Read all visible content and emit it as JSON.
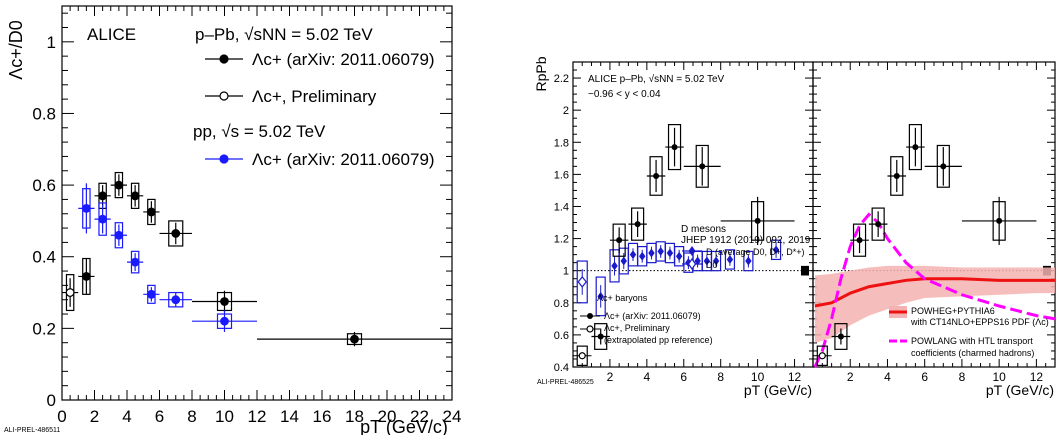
{
  "chart_data": [
    {
      "type": "scatter",
      "ylabel": "Λc+/D0",
      "xlabel": "pT (GeV/c)",
      "xlim": [
        0,
        24
      ],
      "ylim": [
        0,
        1.1
      ],
      "xticks": [
        "0",
        "2",
        "4",
        "6",
        "8",
        "10",
        "12",
        "14",
        "16",
        "18",
        "20",
        "22",
        "24"
      ],
      "yticks": [
        "0",
        "0.2",
        "0.4",
        "0.6",
        "0.8",
        "1"
      ],
      "experiment": "ALICE",
      "system1": "p–Pb, √sNN = 5.02 TeV",
      "system2": "pp, √s = 5.02 TeV",
      "watermark": "ALI-PREL-486511",
      "legend_position": "top-right",
      "series": [
        {
          "name": "Λc+ (arXiv: 2011.06079)",
          "color": "#000000",
          "marker": "filled",
          "points": [
            {
              "x": 1.5,
              "y": 0.345,
              "xl": 1,
              "xh": 2,
              "stat": 0.05,
              "sys": 0.05
            },
            {
              "x": 2.5,
              "y": 0.57,
              "xl": 2,
              "xh": 3,
              "stat": 0.03,
              "sys": 0.035
            },
            {
              "x": 3.5,
              "y": 0.6,
              "xl": 3,
              "xh": 4,
              "stat": 0.03,
              "sys": 0.035
            },
            {
              "x": 4.5,
              "y": 0.57,
              "xl": 4,
              "xh": 5,
              "stat": 0.03,
              "sys": 0.035
            },
            {
              "x": 5.5,
              "y": 0.525,
              "xl": 5,
              "xh": 6,
              "stat": 0.03,
              "sys": 0.035
            },
            {
              "x": 7.0,
              "y": 0.465,
              "xl": 6,
              "xh": 8,
              "stat": 0.03,
              "sys": 0.035
            },
            {
              "x": 10.0,
              "y": 0.275,
              "xl": 8,
              "xh": 12,
              "stat": 0.03,
              "sys": 0.025
            },
            {
              "x": 18.0,
              "y": 0.17,
              "xl": 12,
              "xh": 24,
              "stat": 0.02,
              "sys": 0.015
            }
          ]
        },
        {
          "name": "Λc+, Preliminary",
          "color": "#000000",
          "marker": "open",
          "points": [
            {
              "x": 0.5,
              "y": 0.3,
              "xl": 0,
              "xh": 1,
              "stat": 0.04,
              "sys": 0.05
            }
          ]
        },
        {
          "name": "Λc+ (arXiv: 2011.06079)",
          "color": "#1a1aff",
          "marker": "filled",
          "points": [
            {
              "x": 1.5,
              "y": 0.535,
              "xl": 1,
              "xh": 2,
              "stat": 0.07,
              "sys": 0.055
            },
            {
              "x": 2.5,
              "y": 0.505,
              "xl": 2,
              "xh": 3,
              "stat": 0.04,
              "sys": 0.045
            },
            {
              "x": 3.5,
              "y": 0.46,
              "xl": 3,
              "xh": 4,
              "stat": 0.03,
              "sys": 0.035
            },
            {
              "x": 4.5,
              "y": 0.385,
              "xl": 4,
              "xh": 5,
              "stat": 0.025,
              "sys": 0.03
            },
            {
              "x": 5.5,
              "y": 0.295,
              "xl": 5,
              "xh": 6,
              "stat": 0.02,
              "sys": 0.025
            },
            {
              "x": 7.0,
              "y": 0.28,
              "xl": 6,
              "xh": 8,
              "stat": 0.02,
              "sys": 0.02
            },
            {
              "x": 10.0,
              "y": 0.22,
              "xl": 8,
              "xh": 12,
              "stat": 0.03,
              "sys": 0.02
            }
          ]
        }
      ]
    },
    {
      "type": "scatter",
      "ylabel": "RpPb",
      "xlabel": "pT (GeV/c)",
      "xlim": [
        0,
        13
      ],
      "ylim": [
        0.4,
        2.3
      ],
      "xticks": [
        "2",
        "4",
        "6",
        "8",
        "10",
        "12"
      ],
      "yticks": [
        "0.4",
        "0.6",
        "0.8",
        "1",
        "1.2",
        "1.4",
        "1.6",
        "1.8",
        "2",
        "2.2"
      ],
      "header1": "ALICE p–Pb, √sNN = 5.02 TeV",
      "header2": "−0.96 < y < 0.04",
      "watermark": "ALI-PREL-486525",
      "left_panel": {
        "dmesons_title": "D mesons",
        "dmesons_ref": "JHEP 1912 (2019) 092, 2019",
        "dmesons_avg": "D (average D0, D+, D*+)",
        "d0": "D0",
        "lc_title": "Λc+ baryons",
        "lc_arxiv": "Λc+ (arXiv: 2011.06079)",
        "lc_prelim": "Λc+, Preliminary",
        "lc_prelim_note": "(extrapolated pp reference)",
        "lc_filled": [
          {
            "x": 1.5,
            "y": 0.59,
            "xl": 1,
            "xh": 2,
            "stat": 0.05,
            "sys": 0.08
          },
          {
            "x": 2.5,
            "y": 1.19,
            "xl": 2,
            "xh": 3,
            "stat": 0.08,
            "sys": 0.1
          },
          {
            "x": 3.5,
            "y": 1.29,
            "xl": 3,
            "xh": 4,
            "stat": 0.08,
            "sys": 0.1
          },
          {
            "x": 4.5,
            "y": 1.59,
            "xl": 4,
            "xh": 5,
            "stat": 0.1,
            "sys": 0.12
          },
          {
            "x": 5.5,
            "y": 1.77,
            "xl": 5,
            "xh": 6,
            "stat": 0.12,
            "sys": 0.14
          },
          {
            "x": 7.0,
            "y": 1.65,
            "xl": 6,
            "xh": 8,
            "stat": 0.12,
            "sys": 0.13
          },
          {
            "x": 10.0,
            "y": 1.31,
            "xl": 8,
            "xh": 12,
            "stat": 0.15,
            "sys": 0.12
          }
        ],
        "lc_open": [
          {
            "x": 0.5,
            "y": 0.47,
            "xl": 0,
            "xh": 1,
            "stat": 0.03,
            "sys": 0.06
          }
        ],
        "d_avg": [
          {
            "x": 1.5,
            "y": 0.84,
            "stat": 0.07,
            "sys": 0.12
          },
          {
            "x": 2.25,
            "y": 1.03,
            "stat": 0.06,
            "sys": 0.1
          },
          {
            "x": 2.75,
            "y": 1.06,
            "stat": 0.05,
            "sys": 0.08
          },
          {
            "x": 3.25,
            "y": 1.1,
            "stat": 0.04,
            "sys": 0.07
          },
          {
            "x": 3.75,
            "y": 1.09,
            "stat": 0.04,
            "sys": 0.06
          },
          {
            "x": 4.25,
            "y": 1.11,
            "stat": 0.04,
            "sys": 0.06
          },
          {
            "x": 4.75,
            "y": 1.12,
            "stat": 0.04,
            "sys": 0.06
          },
          {
            "x": 5.25,
            "y": 1.11,
            "stat": 0.04,
            "sys": 0.06
          },
          {
            "x": 5.75,
            "y": 1.09,
            "stat": 0.04,
            "sys": 0.06
          },
          {
            "x": 6.25,
            "y": 1.05,
            "stat": 0.04,
            "sys": 0.06
          },
          {
            "x": 6.75,
            "y": 1.06,
            "stat": 0.04,
            "sys": 0.06
          },
          {
            "x": 7.25,
            "y": 1.06,
            "stat": 0.04,
            "sys": 0.06
          },
          {
            "x": 7.75,
            "y": 1.06,
            "stat": 0.04,
            "sys": 0.06
          },
          {
            "x": 8.5,
            "y": 1.07,
            "stat": 0.04,
            "sys": 0.06
          },
          {
            "x": 9.5,
            "y": 1.06,
            "stat": 0.04,
            "sys": 0.06
          },
          {
            "x": 11.0,
            "y": 1.13,
            "stat": 0.05,
            "sys": 0.06
          }
        ],
        "d0_open": [
          {
            "x": 0.5,
            "y": 0.93,
            "stat": 0.08,
            "sys": 0.13
          }
        ]
      },
      "right_panel": {
        "powheg_label1": "POWHEG+PYTHIA6",
        "powheg_label2": "with CT14NLO+EPPS16 PDF (Λc)",
        "powlang_label1": "POWLANG with HTL transport",
        "powlang_label2": "coefficients (charmed hadrons)",
        "lc_filled": [
          {
            "x": 1.5,
            "y": 0.59,
            "xl": 1,
            "xh": 2,
            "stat": 0.05,
            "sys": 0.08
          },
          {
            "x": 2.5,
            "y": 1.19,
            "xl": 2,
            "xh": 3,
            "stat": 0.08,
            "sys": 0.1
          },
          {
            "x": 3.5,
            "y": 1.29,
            "xl": 3,
            "xh": 4,
            "stat": 0.08,
            "sys": 0.1
          },
          {
            "x": 4.5,
            "y": 1.59,
            "xl": 4,
            "xh": 5,
            "stat": 0.1,
            "sys": 0.12
          },
          {
            "x": 5.5,
            "y": 1.77,
            "xl": 5,
            "xh": 6,
            "stat": 0.12,
            "sys": 0.14
          },
          {
            "x": 7.0,
            "y": 1.65,
            "xl": 6,
            "xh": 8,
            "stat": 0.12,
            "sys": 0.13
          },
          {
            "x": 10.0,
            "y": 1.31,
            "xl": 8,
            "xh": 12,
            "stat": 0.15,
            "sys": 0.12
          }
        ],
        "lc_open": [
          {
            "x": 0.5,
            "y": 0.47,
            "xl": 0,
            "xh": 1,
            "stat": 0.03,
            "sys": 0.06
          }
        ],
        "powheg_curve": [
          [
            0.1,
            0.78
          ],
          [
            1,
            0.8
          ],
          [
            2,
            0.86
          ],
          [
            3,
            0.9
          ],
          [
            4,
            0.92
          ],
          [
            5,
            0.94
          ],
          [
            6,
            0.95
          ],
          [
            8,
            0.95
          ],
          [
            10,
            0.94
          ],
          [
            12,
            0.94
          ],
          [
            13,
            0.94
          ]
        ],
        "powheg_band": [
          [
            0.1,
            0.55,
            0.97
          ],
          [
            1,
            0.58,
            0.98
          ],
          [
            2,
            0.66,
            1.0
          ],
          [
            3,
            0.72,
            1.02
          ],
          [
            4,
            0.76,
            1.03
          ],
          [
            5,
            0.8,
            1.03
          ],
          [
            6,
            0.83,
            1.03
          ],
          [
            8,
            0.84,
            1.02
          ],
          [
            10,
            0.85,
            1.02
          ],
          [
            12,
            0.86,
            1.02
          ],
          [
            13,
            0.86,
            1.02
          ]
        ],
        "powlang_curve": [
          [
            0.1,
            0.4
          ],
          [
            0.5,
            0.5
          ],
          [
            1,
            0.7
          ],
          [
            1.5,
            0.95
          ],
          [
            2,
            1.15
          ],
          [
            2.5,
            1.28
          ],
          [
            3,
            1.35
          ],
          [
            3.5,
            1.3
          ],
          [
            4,
            1.2
          ],
          [
            5,
            1.05
          ],
          [
            6,
            0.95
          ],
          [
            8,
            0.85
          ],
          [
            10,
            0.78
          ],
          [
            12,
            0.72
          ],
          [
            13,
            0.7
          ]
        ]
      },
      "normalization_uncertainty": 0.03
    }
  ]
}
